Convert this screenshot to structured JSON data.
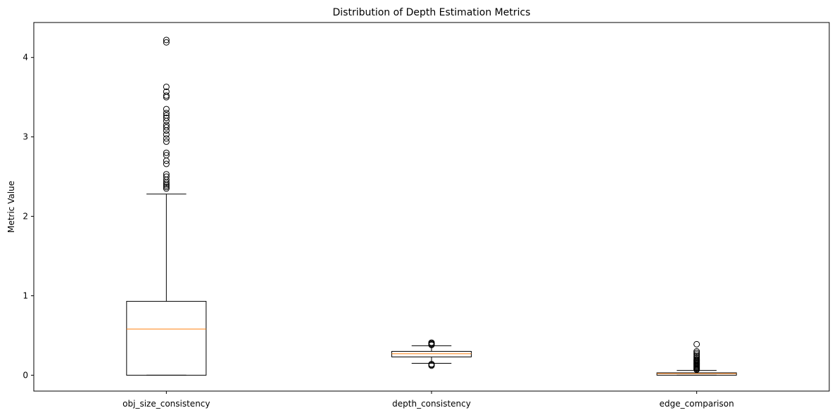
{
  "chart_data": {
    "type": "box",
    "title": "Distribution of Depth Estimation Metrics",
    "xlabel": "",
    "ylabel": "Metric Value",
    "ylim": [
      -0.2,
      4.44
    ],
    "yticks": [
      0,
      1,
      2,
      3,
      4
    ],
    "grid": false,
    "categories": [
      "obj_size_consistency",
      "depth_consistency",
      "edge_comparison"
    ],
    "boxes": [
      {
        "name": "obj_size_consistency",
        "whisker_low": 0.0,
        "q1": 0.0,
        "median": 0.58,
        "q3": 0.93,
        "whisker_high": 2.28,
        "outliers": [
          2.35,
          2.37,
          2.39,
          2.41,
          2.43,
          2.46,
          2.5,
          2.53,
          2.66,
          2.7,
          2.77,
          2.8,
          2.94,
          2.98,
          3.03,
          3.08,
          3.12,
          3.15,
          3.2,
          3.24,
          3.27,
          3.3,
          3.35,
          3.5,
          3.52,
          3.57,
          3.63,
          4.19,
          4.22
        ]
      },
      {
        "name": "depth_consistency",
        "whisker_low": 0.15,
        "q1": 0.23,
        "median": 0.27,
        "q3": 0.3,
        "whisker_high": 0.37,
        "outliers": [
          0.12,
          0.13,
          0.14,
          0.38,
          0.39,
          0.4,
          0.41
        ]
      },
      {
        "name": "edge_comparison",
        "whisker_low": 0.0,
        "q1": 0.0,
        "median": 0.02,
        "q3": 0.03,
        "whisker_high": 0.06,
        "outliers": [
          0.07,
          0.08,
          0.09,
          0.1,
          0.11,
          0.12,
          0.13,
          0.14,
          0.15,
          0.16,
          0.17,
          0.18,
          0.19,
          0.2,
          0.22,
          0.24,
          0.26,
          0.28,
          0.3,
          0.39
        ]
      }
    ],
    "colors": {
      "box": "#000000",
      "median": "#ff7f0e",
      "outlier": "#000000"
    }
  }
}
